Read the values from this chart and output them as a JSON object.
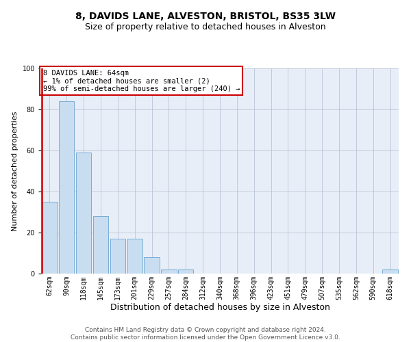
{
  "title": "8, DAVIDS LANE, ALVESTON, BRISTOL, BS35 3LW",
  "subtitle": "Size of property relative to detached houses in Alveston",
  "xlabel": "Distribution of detached houses by size in Alveston",
  "ylabel": "Number of detached properties",
  "categories": [
    "62sqm",
    "90sqm",
    "118sqm",
    "145sqm",
    "173sqm",
    "201sqm",
    "229sqm",
    "257sqm",
    "284sqm",
    "312sqm",
    "340sqm",
    "368sqm",
    "396sqm",
    "423sqm",
    "451sqm",
    "479sqm",
    "507sqm",
    "535sqm",
    "562sqm",
    "590sqm",
    "618sqm"
  ],
  "values": [
    35,
    84,
    59,
    28,
    17,
    17,
    8,
    2,
    2,
    0,
    0,
    0,
    0,
    0,
    0,
    0,
    0,
    0,
    0,
    0,
    2
  ],
  "bar_color": "#c9ddf0",
  "bar_edge_color": "#7aadd4",
  "highlight_bar_index": 0,
  "highlight_edge_color": "#cc0000",
  "ylim": [
    0,
    100
  ],
  "annotation_text": "8 DAVIDS LANE: 64sqm\n← 1% of detached houses are smaller (2)\n99% of semi-detached houses are larger (240) →",
  "annotation_box_color": "#ffffff",
  "annotation_border_color": "#cc0000",
  "footer_text": "Contains HM Land Registry data © Crown copyright and database right 2024.\nContains public sector information licensed under the Open Government Licence v3.0.",
  "background_color": "#e8eef8",
  "title_fontsize": 10,
  "subtitle_fontsize": 9,
  "ylabel_fontsize": 8,
  "xlabel_fontsize": 9,
  "tick_fontsize": 7,
  "annotation_fontsize": 7.5,
  "footer_fontsize": 6.5
}
